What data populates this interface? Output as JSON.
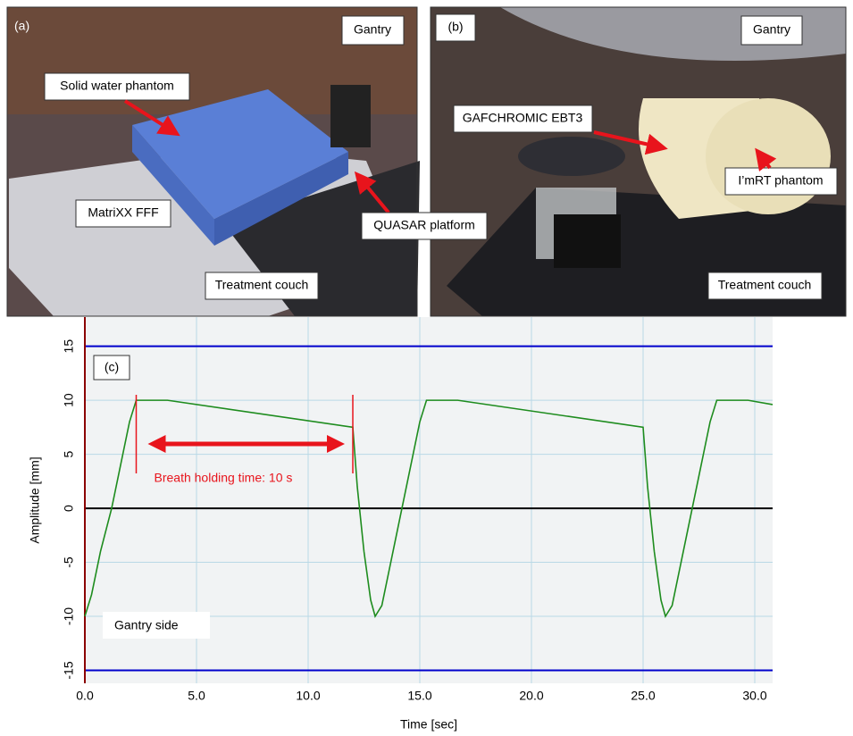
{
  "photos": {
    "a": {
      "tag": "(a)",
      "labels": [
        "Gantry",
        "Solid water phantom",
        "MatriXX FFF",
        "QUASAR platform",
        "Treatment couch"
      ]
    },
    "b": {
      "tag": "(b)",
      "labels": [
        "Gantry",
        "GAFCHROMIC EBT3",
        "I’mRT phantom",
        "Treatment couch"
      ]
    }
  },
  "chart_data": {
    "type": "line",
    "panel_label": "(c)",
    "x_label": "Time [sec]",
    "y_label": "Amplitude [mm]",
    "annotations": [
      "Breath holding time: 10 s",
      "Gantry side"
    ],
    "annotation_span": [
      2.3,
      12
    ],
    "x": [
      0,
      0.3,
      0.7,
      1.2,
      1.6,
      2.0,
      2.3,
      3.7,
      12.0,
      12.2,
      12.5,
      12.8,
      13.0,
      13.3,
      13.7,
      14.2,
      14.6,
      15.0,
      15.3,
      16.7,
      25.0,
      25.2,
      25.5,
      25.8,
      26.0,
      26.3,
      26.7,
      27.2,
      27.6,
      28.0,
      28.3,
      29.7,
      30.8
    ],
    "values": [
      -10,
      -8,
      -4,
      0,
      4,
      8,
      10,
      10,
      7.5,
      2,
      -4,
      -8.5,
      -10,
      -9,
      -5,
      0,
      4,
      8,
      10,
      10,
      7.5,
      2,
      -4,
      -8.5,
      -10,
      -9,
      -5,
      0,
      4,
      8,
      10,
      10,
      9.6
    ],
    "color": "#1e8c1e",
    "hlines": [
      {
        "value": 15,
        "color": "#0000cc"
      },
      {
        "value": 0,
        "color": "#000000"
      },
      {
        "value": -15,
        "color": "#0000cc"
      }
    ],
    "xlim": [
      0,
      30.8
    ],
    "ylim": [
      -16.2,
      17.7
    ],
    "xticks": [
      {
        "value": 0,
        "label": "0.0"
      },
      {
        "value": 5,
        "label": "5.0"
      },
      {
        "value": 10,
        "label": "10.0"
      },
      {
        "value": 15,
        "label": "15.0"
      },
      {
        "value": 20,
        "label": "20.0"
      },
      {
        "value": 25,
        "label": "25.0"
      },
      {
        "value": 30,
        "label": "30.0"
      }
    ],
    "yticks": [
      -15,
      -10,
      -5,
      0,
      5,
      10,
      15
    ],
    "grid": true
  }
}
